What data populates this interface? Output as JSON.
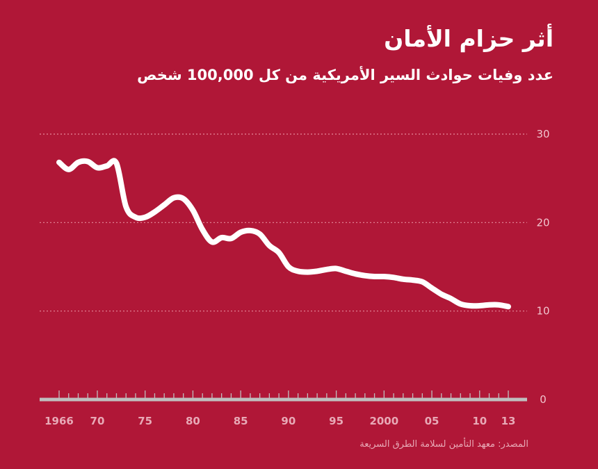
{
  "chart_data": {
    "type": "line",
    "title": "أثر حزام الأمان",
    "subtitle": "عدد وفيات حوادث السير الأمريكية من كل 100,000 شخص",
    "source": "المصدر: معهد التأمين لسلامة الطرق السريعة",
    "ylim": [
      0,
      30
    ],
    "yticks": [
      "30",
      "20",
      "10",
      "0"
    ],
    "ytick_values": [
      30,
      20,
      10,
      0
    ],
    "xlim": [
      1966,
      2013
    ],
    "xtick_labels": [
      "1966",
      "70",
      "75",
      "80",
      "85",
      "90",
      "95",
      "2000",
      "05",
      "10",
      "13"
    ],
    "xtick_values": [
      1966,
      1970,
      1975,
      1980,
      1985,
      1990,
      1995,
      2000,
      2005,
      2010,
      2013
    ],
    "grid": true,
    "colors": {
      "background": "#b01737",
      "line": "#ffffff",
      "grid": "#e58a9c",
      "axis": "#bfbfbf"
    },
    "x": [
      1966,
      1967,
      1968,
      1969,
      1970,
      1971,
      1972,
      1973,
      1974,
      1975,
      1976,
      1977,
      1978,
      1979,
      1980,
      1981,
      1982,
      1983,
      1984,
      1985,
      1986,
      1987,
      1988,
      1989,
      1990,
      1991,
      1992,
      1993,
      1994,
      1995,
      1996,
      1997,
      1998,
      1999,
      2000,
      2001,
      2002,
      2003,
      2004,
      2005,
      2006,
      2007,
      2008,
      2009,
      2010,
      2011,
      2012,
      2013
    ],
    "values": [
      26.8,
      26.0,
      26.8,
      26.9,
      26.2,
      26.4,
      26.7,
      21.8,
      20.6,
      20.6,
      21.2,
      22.0,
      22.8,
      22.7,
      21.4,
      19.2,
      17.8,
      18.3,
      18.2,
      18.9,
      19.1,
      18.7,
      17.4,
      16.6,
      15.0,
      14.5,
      14.4,
      14.5,
      14.7,
      14.8,
      14.5,
      14.2,
      14.0,
      13.9,
      13.9,
      13.8,
      13.6,
      13.5,
      13.3,
      12.6,
      11.9,
      11.4,
      10.8,
      10.6,
      10.6,
      10.7,
      10.7,
      10.5
    ]
  }
}
